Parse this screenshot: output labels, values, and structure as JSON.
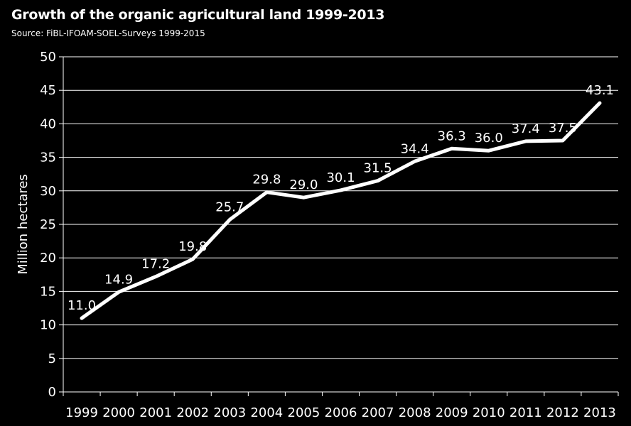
{
  "chart_data": {
    "type": "line",
    "title": "Growth of the organic agricultural land 1999-2013",
    "subtitle": "Source: FiBL-IFOAM-SOEL-Surveys 1999-2015",
    "xlabel": "",
    "ylabel": "Million hectares",
    "categories": [
      "1999",
      "2000",
      "2001",
      "2002",
      "2003",
      "2004",
      "2005",
      "2006",
      "2007",
      "2008",
      "2009",
      "2010",
      "2011",
      "2012",
      "2013"
    ],
    "values": [
      11.0,
      14.9,
      17.2,
      19.8,
      25.7,
      29.8,
      29.0,
      30.1,
      31.5,
      34.4,
      36.3,
      36.0,
      37.4,
      37.5,
      43.1
    ],
    "data_labels": [
      "11.0",
      "14.9",
      "17.2",
      "19.8",
      "25.7",
      "29.8",
      "29.0",
      "30.1",
      "31.5",
      "34.4",
      "36.3",
      "36.0",
      "37.4",
      "37.5",
      "43.1"
    ],
    "ylim": [
      0,
      50
    ],
    "yticks": [
      "0",
      "5",
      "10",
      "15",
      "20",
      "25",
      "30",
      "35",
      "40",
      "45",
      "50"
    ],
    "grid": true,
    "legend": "none",
    "line_color": "#ffffff",
    "background": "#000000",
    "gridline_color": "#ffffff"
  }
}
